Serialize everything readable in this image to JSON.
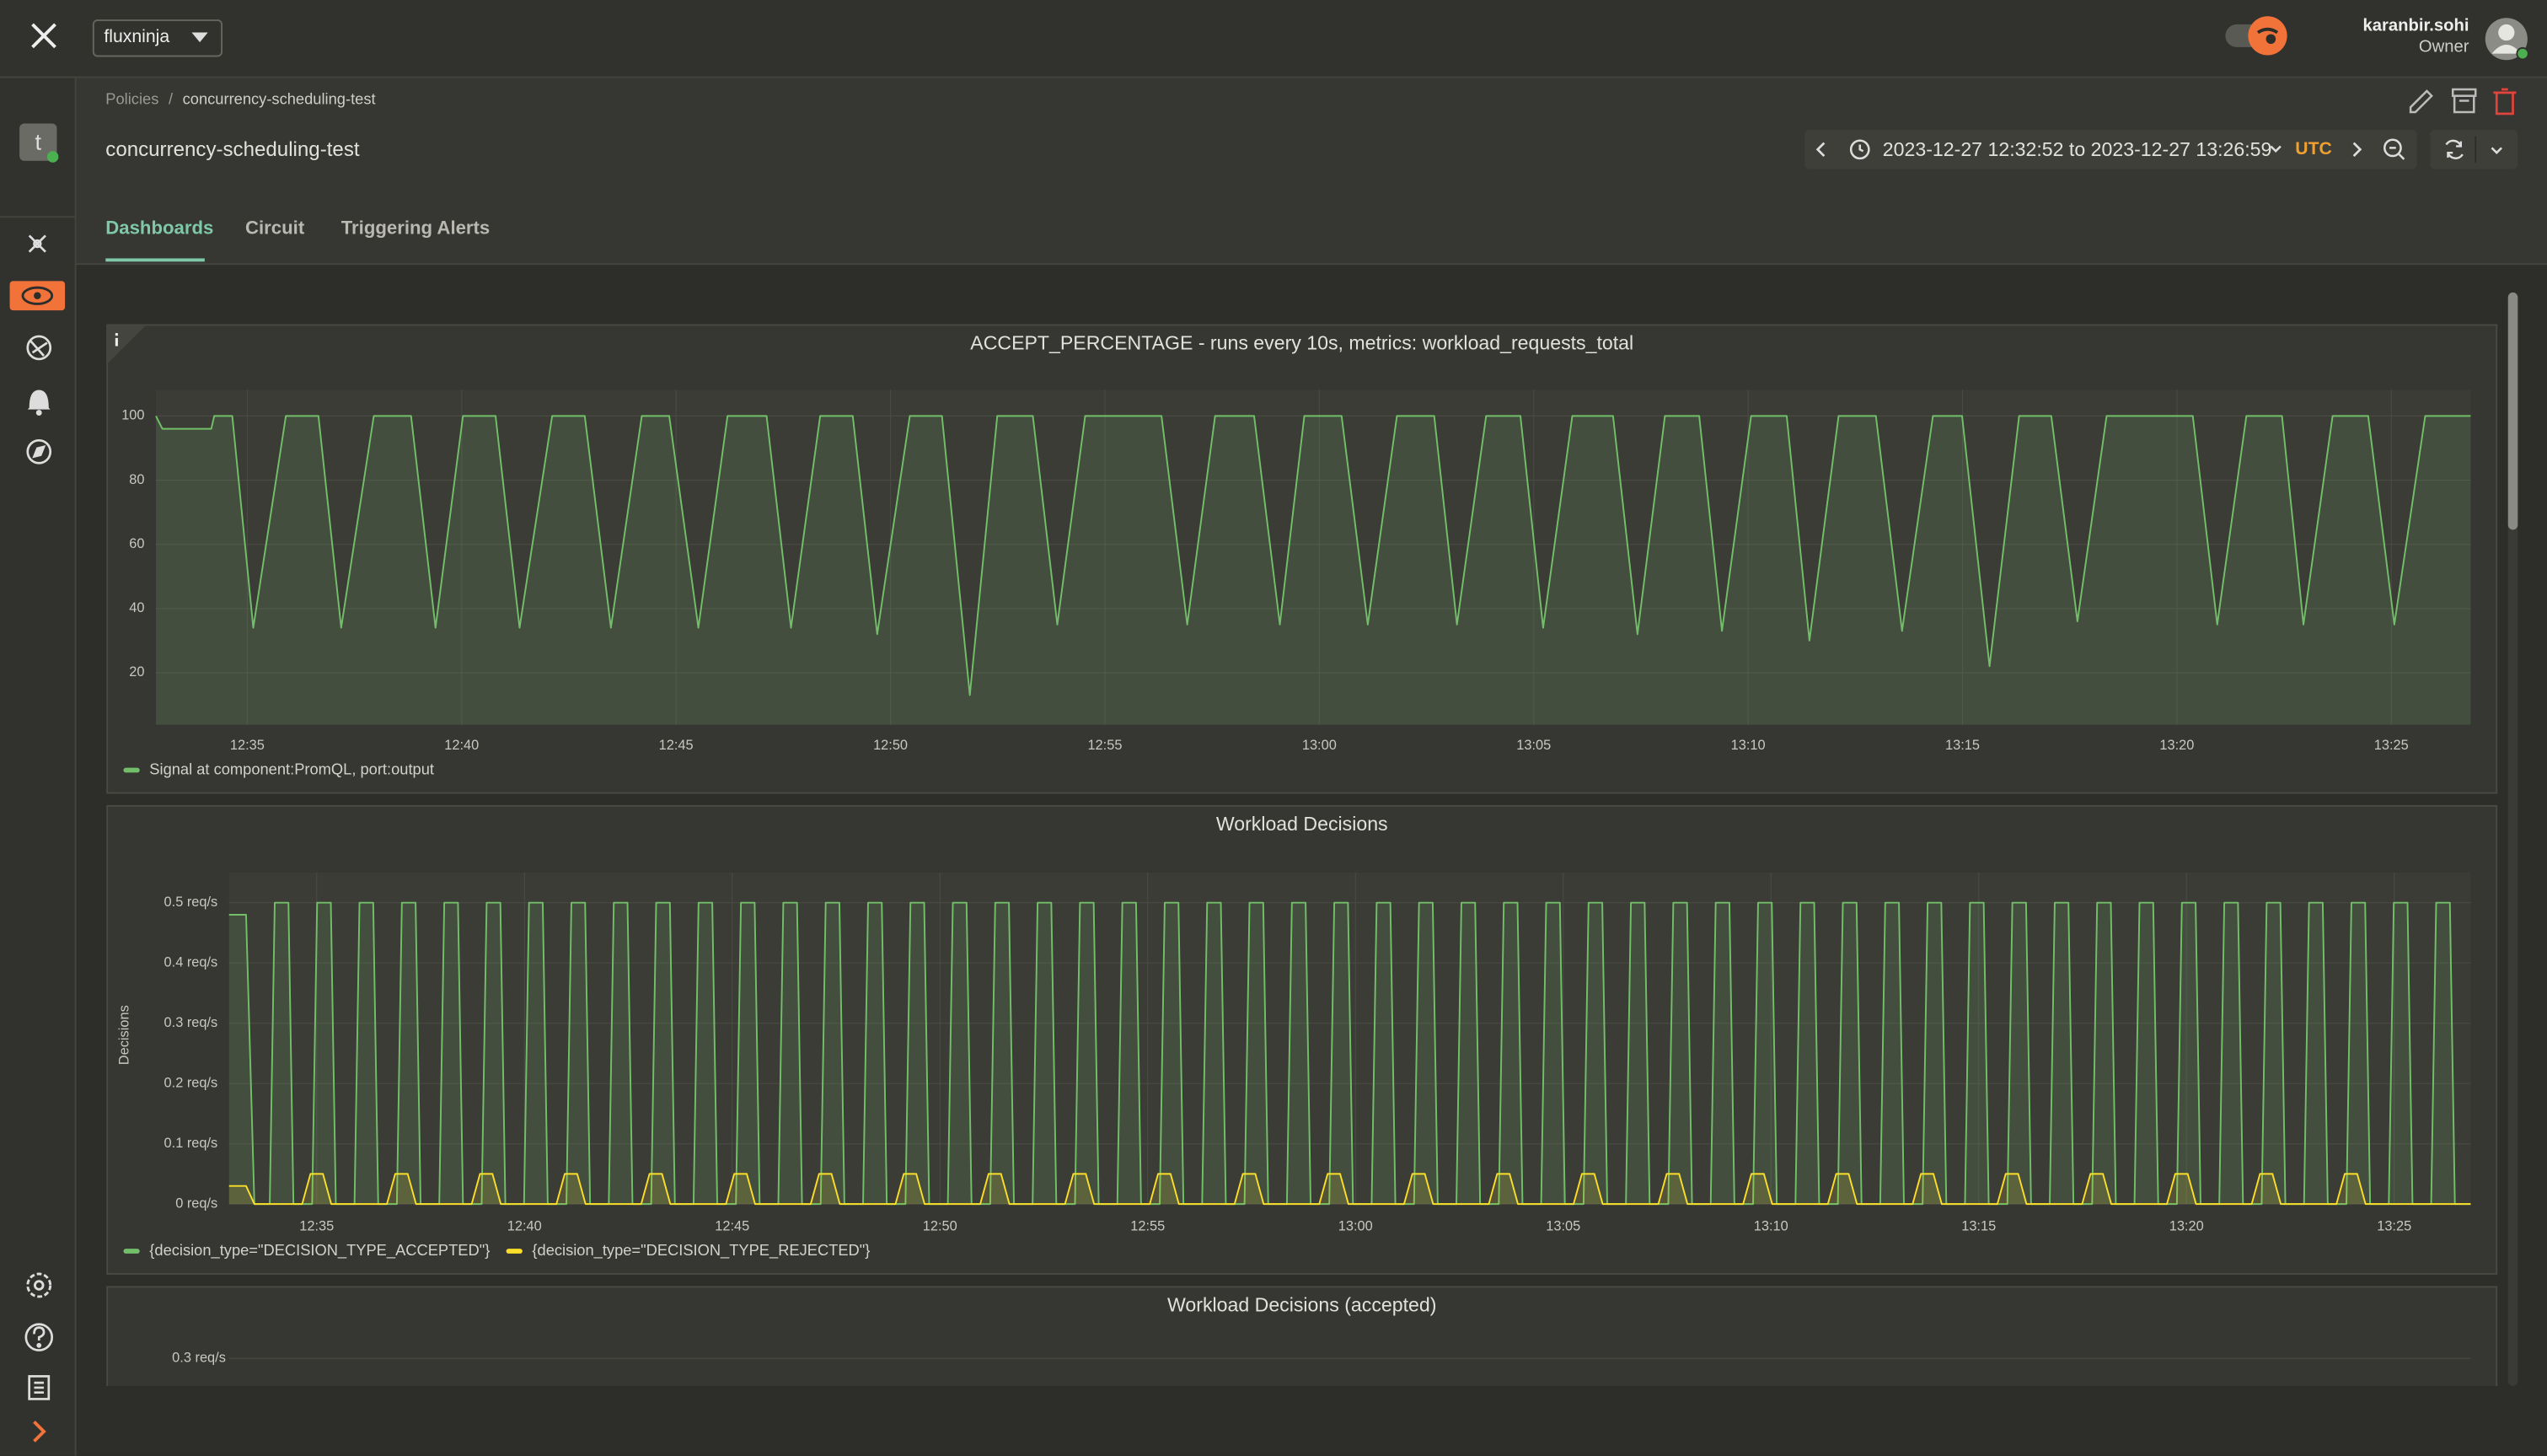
{
  "topbar": {
    "org": "fluxninja",
    "user_name": "karanbir.sohi",
    "user_role": "Owner"
  },
  "sidebar": {
    "avatar_letter": "t"
  },
  "breadcrumb": [
    "Policies",
    "concurrency-scheduling-test"
  ],
  "page_title": "concurrency-scheduling-test",
  "time_range": "2023-12-27 12:32:52 to 2023-12-27 13:26:59",
  "timezone": "UTC",
  "tabs": [
    "Dashboards",
    "Circuit",
    "Triggering Alerts"
  ],
  "chart_data": [
    {
      "type": "line",
      "title": "ACCEPT_PERCENTAGE - runs every 10s, metrics: workload_requests_total",
      "grid": true,
      "xlim": [
        752.87,
        806.85
      ],
      "ylim": [
        3.8,
        108.1
      ],
      "xticks": [
        {
          "value": 755,
          "label": "12:35"
        },
        {
          "value": 760,
          "label": "12:40"
        },
        {
          "value": 765,
          "label": "12:45"
        },
        {
          "value": 770,
          "label": "12:50"
        },
        {
          "value": 775,
          "label": "12:55"
        },
        {
          "value": 780,
          "label": "13:00"
        },
        {
          "value": 785,
          "label": "13:05"
        },
        {
          "value": 790,
          "label": "13:10"
        },
        {
          "value": 795,
          "label": "13:15"
        },
        {
          "value": 800,
          "label": "13:20"
        },
        {
          "value": 805,
          "label": "13:25"
        }
      ],
      "yticks": [
        20,
        40,
        60,
        80,
        100
      ],
      "series": [
        {
          "name": "Signal at component:PromQL, port:output",
          "color": "#73bf69",
          "fill": true,
          "x": [
            752.87,
            753.02,
            754.16,
            754.23,
            754.65,
            755.14,
            755.9,
            756.66,
            757.19,
            757.95,
            758.82,
            759.39,
            760.03,
            760.79,
            761.35,
            762.11,
            762.87,
            763.48,
            764.2,
            764.84,
            765.52,
            766.2,
            767.11,
            767.68,
            768.36,
            769.12,
            769.69,
            770.45,
            771.2,
            771.85,
            772.49,
            773.32,
            773.89,
            774.54,
            776.32,
            776.92,
            777.57,
            778.48,
            779.08,
            779.65,
            780.52,
            781.13,
            781.81,
            782.68,
            783.21,
            783.89,
            784.69,
            785.22,
            785.9,
            786.85,
            787.42,
            788.06,
            788.86,
            789.39,
            790.07,
            790.9,
            791.43,
            792.11,
            792.98,
            793.59,
            794.31,
            794.99,
            795.63,
            796.32,
            797.07,
            797.68,
            798.36,
            800.37,
            800.94,
            801.62,
            802.45,
            802.95,
            803.63,
            804.46,
            805.07,
            805.79,
            806.85
          ],
          "values": [
            100,
            96,
            96,
            100,
            100,
            34,
            100,
            100,
            34,
            100,
            100,
            34,
            100,
            100,
            34,
            100,
            100,
            34,
            100,
            100,
            34,
            100,
            100,
            34,
            100,
            100,
            32,
            100,
            100,
            13,
            100,
            100,
            35,
            100,
            100,
            35,
            100,
            100,
            35,
            100,
            100,
            35,
            100,
            100,
            35,
            100,
            100,
            34,
            100,
            100,
            32,
            100,
            100,
            33,
            100,
            100,
            30,
            100,
            100,
            33,
            100,
            100,
            22,
            100,
            100,
            36,
            100,
            100,
            35,
            100,
            100,
            35,
            100,
            100,
            35,
            100,
            100
          ]
        }
      ]
    },
    {
      "type": "line",
      "title": "Workload Decisions",
      "y_label": "Decisions",
      "grid": true,
      "xlim": [
        752.89,
        806.84
      ],
      "ylim": [
        0,
        0.55
      ],
      "xticks": [
        {
          "value": 755,
          "label": "12:35"
        },
        {
          "value": 760,
          "label": "12:40"
        },
        {
          "value": 765,
          "label": "12:45"
        },
        {
          "value": 770,
          "label": "12:50"
        },
        {
          "value": 775,
          "label": "12:55"
        },
        {
          "value": 780,
          "label": "13:00"
        },
        {
          "value": 785,
          "label": "13:05"
        },
        {
          "value": 790,
          "label": "13:10"
        },
        {
          "value": 795,
          "label": "13:15"
        },
        {
          "value": 800,
          "label": "13:20"
        },
        {
          "value": 805,
          "label": "13:25"
        }
      ],
      "yticks": [
        {
          "value": 0,
          "label": "0 req/s"
        },
        {
          "value": 0.1,
          "label": "0.1 req/s"
        },
        {
          "value": 0.2,
          "label": "0.2 req/s"
        },
        {
          "value": 0.3,
          "label": "0.3 req/s"
        },
        {
          "value": 0.4,
          "label": "0.4 req/s"
        },
        {
          "value": 0.5,
          "label": "0.5 req/s"
        }
      ],
      "series": [
        {
          "name": "{decision_type=\"DECISION_TYPE_ACCEPTED\"}",
          "color": "#73bf69",
          "fill": true,
          "x": [
            752.89,
            753.3,
            753.5,
            753.87,
            753.99,
            754.32,
            754.44,
            754.89,
            755.01,
            755.34,
            755.46,
            755.91,
            756.03,
            756.36,
            756.48,
            756.93,
            757.05,
            757.38,
            757.5,
            757.95,
            758.07,
            758.4,
            758.52,
            758.97,
            759.09,
            759.42,
            759.54,
            759.99,
            760.11,
            760.44,
            760.56,
            761.01,
            761.13,
            761.46,
            761.58,
            762.03,
            762.15,
            762.48,
            762.6,
            763.05,
            763.17,
            763.5,
            763.62,
            764.07,
            764.19,
            764.52,
            764.64,
            765.09,
            765.21,
            765.54,
            765.66,
            766.11,
            766.23,
            766.56,
            766.68,
            767.13,
            767.25,
            767.58,
            767.7,
            768.15,
            768.27,
            768.6,
            768.72,
            769.17,
            769.29,
            769.62,
            769.74,
            770.19,
            770.31,
            770.64,
            770.76,
            771.21,
            771.33,
            771.66,
            771.78,
            772.23,
            772.35,
            772.68,
            772.8,
            773.25,
            773.37,
            773.7,
            773.82,
            774.27,
            774.39,
            774.72,
            774.84,
            775.29,
            775.41,
            775.74,
            775.86,
            776.31,
            776.43,
            776.76,
            776.88,
            777.33,
            777.45,
            777.78,
            777.9,
            778.35,
            778.47,
            778.8,
            778.92,
            779.37,
            779.49,
            779.82,
            779.94,
            780.39,
            780.51,
            780.84,
            780.96,
            781.41,
            781.53,
            781.86,
            781.98,
            782.43,
            782.55,
            782.88,
            783,
            783.45,
            783.57,
            783.9,
            784.02,
            784.47,
            784.59,
            784.92,
            785.04,
            785.49,
            785.61,
            785.94,
            786.06,
            786.51,
            786.63,
            786.96,
            787.08,
            787.53,
            787.65,
            787.98,
            788.1,
            788.55,
            788.67,
            789,
            789.12,
            789.57,
            789.69,
            790.02,
            790.14,
            790.59,
            790.71,
            791.04,
            791.16,
            791.61,
            791.73,
            792.06,
            792.18,
            792.63,
            792.75,
            793.08,
            793.2,
            793.65,
            793.77,
            794.1,
            794.22,
            794.67,
            794.79,
            795.12,
            795.24,
            795.69,
            795.81,
            796.14,
            796.26,
            796.71,
            796.83,
            797.16,
            797.28,
            797.73,
            797.85,
            798.18,
            798.3,
            798.75,
            798.87,
            799.2,
            799.32,
            799.77,
            799.89,
            800.22,
            800.34,
            800.79,
            800.91,
            801.24,
            801.36,
            801.81,
            801.93,
            802.26,
            802.38,
            802.83,
            802.95,
            803.28,
            803.4,
            803.85,
            803.97,
            804.3,
            804.42,
            804.87,
            804.99,
            805.32,
            805.44,
            805.89,
            806.01,
            806.34,
            806.46,
            806.84
          ],
          "values": [
            0.48,
            0.48,
            0,
            0,
            0.5,
            0.5,
            0,
            0,
            0.5,
            0.5,
            0,
            0,
            0.5,
            0.5,
            0,
            0,
            0.5,
            0.5,
            0,
            0,
            0.5,
            0.5,
            0,
            0,
            0.5,
            0.5,
            0,
            0,
            0.5,
            0.5,
            0,
            0,
            0.5,
            0.5,
            0,
            0,
            0.5,
            0.5,
            0,
            0,
            0.5,
            0.5,
            0,
            0,
            0.5,
            0.5,
            0,
            0,
            0.5,
            0.5,
            0,
            0,
            0.5,
            0.5,
            0,
            0,
            0.5,
            0.5,
            0,
            0,
            0.5,
            0.5,
            0,
            0,
            0.5,
            0.5,
            0,
            0,
            0.5,
            0.5,
            0,
            0,
            0.5,
            0.5,
            0,
            0,
            0.5,
            0.5,
            0,
            0,
            0.5,
            0.5,
            0,
            0,
            0.5,
            0.5,
            0,
            0,
            0.5,
            0.5,
            0,
            0,
            0.5,
            0.5,
            0,
            0,
            0.5,
            0.5,
            0,
            0,
            0.5,
            0.5,
            0,
            0,
            0.5,
            0.5,
            0,
            0,
            0.5,
            0.5,
            0,
            0,
            0.5,
            0.5,
            0,
            0,
            0.5,
            0.5,
            0,
            0,
            0.5,
            0.5,
            0,
            0,
            0.5,
            0.5,
            0,
            0,
            0.5,
            0.5,
            0,
            0,
            0.5,
            0.5,
            0,
            0,
            0.5,
            0.5,
            0,
            0,
            0.5,
            0.5,
            0,
            0,
            0.5,
            0.5,
            0,
            0,
            0.5,
            0.5,
            0,
            0,
            0.5,
            0.5,
            0,
            0,
            0.5,
            0.5,
            0,
            0,
            0.5,
            0.5,
            0,
            0,
            0.5,
            0.5,
            0,
            0,
            0.5,
            0.5,
            0,
            0,
            0.5,
            0.5,
            0,
            0,
            0.5,
            0.5,
            0,
            0,
            0.5,
            0.5,
            0,
            0,
            0.5,
            0.5,
            0,
            0,
            0.5,
            0.5,
            0,
            0,
            0.5,
            0.5,
            0,
            0,
            0.5,
            0.5,
            0,
            0,
            0.5,
            0.5,
            0,
            0,
            0.5,
            0.5,
            0,
            0,
            0.5,
            0.5,
            0,
            0
          ]
        },
        {
          "name": "{decision_type=\"DECISION_TYPE_REJECTED\"}",
          "color": "#fade2a",
          "fill": true,
          "x": [
            752.89,
            753.3,
            753.5,
            754.65,
            754.85,
            755.15,
            755.35,
            756.69,
            756.89,
            757.19,
            757.39,
            758.73,
            758.93,
            759.23,
            759.43,
            760.77,
            760.97,
            761.27,
            761.47,
            762.81,
            763.01,
            763.31,
            763.51,
            764.85,
            765.05,
            765.35,
            765.55,
            766.89,
            767.09,
            767.39,
            767.59,
            768.93,
            769.13,
            769.43,
            769.63,
            770.97,
            771.17,
            771.47,
            771.67,
            773.01,
            773.21,
            773.51,
            773.71,
            775.05,
            775.25,
            775.55,
            775.75,
            777.09,
            777.29,
            777.59,
            777.79,
            779.13,
            779.33,
            779.63,
            779.83,
            781.17,
            781.37,
            781.67,
            781.87,
            783.21,
            783.41,
            783.71,
            783.91,
            785.25,
            785.45,
            785.75,
            785.95,
            787.29,
            787.49,
            787.79,
            787.99,
            789.33,
            789.53,
            789.83,
            790.03,
            791.37,
            791.57,
            791.87,
            792.07,
            793.41,
            793.61,
            793.91,
            794.11,
            795.45,
            795.65,
            795.95,
            796.15,
            797.49,
            797.69,
            797.99,
            798.19,
            799.53,
            799.73,
            800.03,
            800.23,
            801.57,
            801.77,
            802.07,
            802.27,
            803.61,
            803.81,
            804.11,
            804.31,
            806.84
          ],
          "values": [
            0.03,
            0.03,
            0,
            0,
            0.05,
            0.05,
            0,
            0,
            0.05,
            0.05,
            0,
            0,
            0.05,
            0.05,
            0,
            0,
            0.05,
            0.05,
            0,
            0,
            0.05,
            0.05,
            0,
            0,
            0.05,
            0.05,
            0,
            0,
            0.05,
            0.05,
            0,
            0,
            0.05,
            0.05,
            0,
            0,
            0.05,
            0.05,
            0,
            0,
            0.05,
            0.05,
            0,
            0,
            0.05,
            0.05,
            0,
            0,
            0.05,
            0.05,
            0,
            0,
            0.05,
            0.05,
            0,
            0,
            0.05,
            0.05,
            0,
            0,
            0.05,
            0.05,
            0,
            0,
            0.05,
            0.05,
            0,
            0,
            0.05,
            0.05,
            0,
            0,
            0.05,
            0.05,
            0,
            0,
            0.05,
            0.05,
            0,
            0,
            0.05,
            0.05,
            0,
            0,
            0.05,
            0.05,
            0,
            0,
            0.05,
            0.05,
            0,
            0,
            0.05,
            0.05,
            0,
            0,
            0.05,
            0.05,
            0,
            0,
            0.05,
            0.05,
            0,
            0
          ]
        }
      ]
    },
    {
      "type": "line",
      "title": "Workload Decisions (accepted)",
      "grid": true,
      "yticks": [
        {
          "value": 0.3,
          "label": "0.3 req/s"
        }
      ]
    }
  ]
}
